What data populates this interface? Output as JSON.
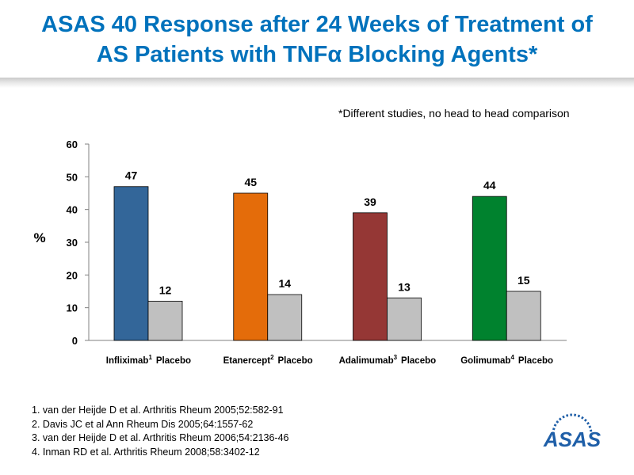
{
  "slide": {
    "title_line1": "ASAS 40 Response after 24 Weeks of Treatment of",
    "title_line2": "AS Patients with TNFα Blocking Agents*",
    "footnote": "*Different studies, no head to head comparison",
    "logo_text": "ASAS",
    "colors": {
      "title": "#0072bc",
      "infliximab": "#336699",
      "etanercept": "#e46c0a",
      "adalimumab": "#953735",
      "golimumab": "#00822e",
      "placebo": "#c0c0c0",
      "logo": "#1f5fa8"
    }
  },
  "chart_data": {
    "type": "bar",
    "title": "",
    "ylabel": "%",
    "ylim": [
      0,
      60
    ],
    "yticks": [
      0,
      10,
      20,
      30,
      40,
      50,
      60
    ],
    "grid": false,
    "legend": "none",
    "groups": [
      {
        "treatment": "Infliximab",
        "sup": "1",
        "value": 47,
        "placebo_label": "Placebo",
        "placebo_value": 12,
        "color_key": "infliximab"
      },
      {
        "treatment": "Etanercept",
        "sup": "2",
        "value": 45,
        "placebo_label": "Placebo",
        "placebo_value": 14,
        "color_key": "etanercept"
      },
      {
        "treatment": "Adalimumab",
        "sup": "3",
        "value": 39,
        "placebo_label": "Placebo",
        "placebo_value": 13,
        "color_key": "adalimumab"
      },
      {
        "treatment": "Golimumab",
        "sup": "4",
        "value": 44,
        "placebo_label": "Placebo",
        "placebo_value": 15,
        "color_key": "golimumab"
      }
    ]
  },
  "references": [
    "1. van der Heijde D et al. Arthritis Rheum 2005;52:582-91",
    "2. Davis JC et al Ann Rheum Dis 2005;64:1557-62",
    "3. van der Heijde D et al. Arthritis Rheum 2006;54:2136-46",
    "4. Inman RD et al. Arthritis Rheum 2008;58:3402-12"
  ]
}
